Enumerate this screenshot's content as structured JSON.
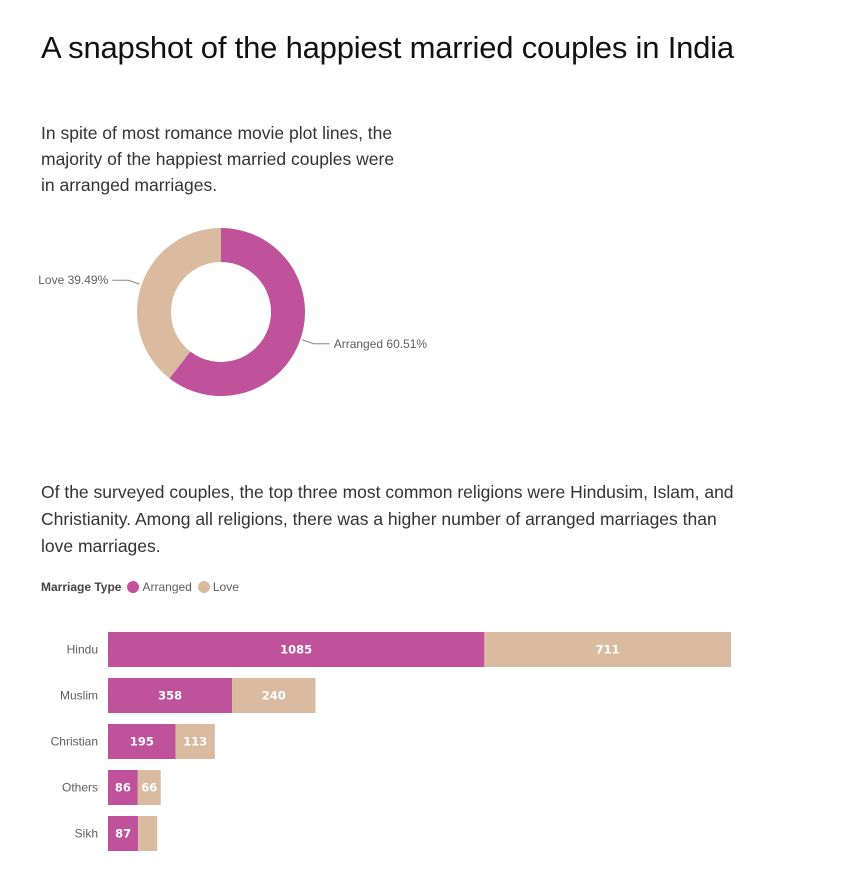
{
  "title": "A snapshot of the happiest married couples in India",
  "intro_text": "In spite of most romance movie plot lines, the majority of the happiest married couples were in arranged marriages.",
  "religion_text": "Of the surveyed couples, the top three most common religions were Hindusim, Islam, and Christianity. Among all religions, there was a higher number of arranged marriages than love marriages.",
  "colors": {
    "arranged": "#C0529B",
    "love": "#DABB9F"
  },
  "legend": {
    "title": "Marriage Type",
    "items": [
      "Arranged",
      "Love"
    ]
  },
  "chart_data": [
    {
      "type": "pie",
      "donut": true,
      "slices": [
        {
          "label": "Arranged",
          "value": 60.51,
          "display": "Arranged 60.51%"
        },
        {
          "label": "Love",
          "value": 39.49,
          "display": "Love 39.49%"
        }
      ]
    },
    {
      "type": "bar",
      "orientation": "horizontal",
      "stacked": true,
      "categories": [
        "Hindu",
        "Muslim",
        "Christian",
        "Others",
        "Sikh"
      ],
      "series": [
        {
          "name": "Arranged",
          "values": [
            1085,
            358,
            195,
            86,
            87
          ],
          "labels": [
            "1085",
            "358",
            "195",
            "86",
            "87"
          ]
        },
        {
          "name": "Love",
          "values": [
            711,
            240,
            113,
            66,
            55
          ],
          "labels": [
            "711",
            "240",
            "113",
            "66",
            ""
          ]
        }
      ],
      "legend_title": "Marriage Type",
      "legend_position": "top-left"
    }
  ]
}
